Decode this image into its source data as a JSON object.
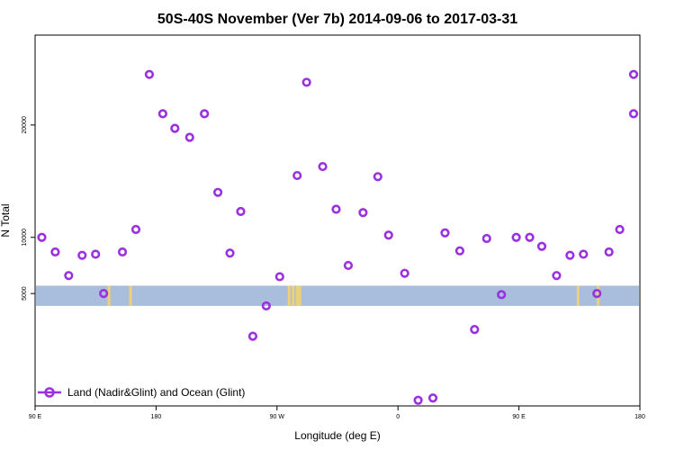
{
  "chart_data": {
    "type": "scatter",
    "title": "50S-40S November (Ver 7b)   2014-09-06 to 2017-03-31",
    "xlabel": "Longitude (deg E)",
    "ylabel": "N Total",
    "xlim": [
      90,
      540
    ],
    "ylim": [
      -5000,
      28000
    ],
    "x_ticks": [
      {
        "value": 90,
        "label": "90 E"
      },
      {
        "value": 180,
        "label": "180"
      },
      {
        "value": 270,
        "label": "90 W"
      },
      {
        "value": 360,
        "label": "0"
      },
      {
        "value": 450,
        "label": "90 E"
      },
      {
        "value": 540,
        "label": "180"
      }
    ],
    "y_ticks": [
      {
        "value": 5000,
        "label": "5000"
      },
      {
        "value": 10000,
        "label": "10000"
      },
      {
        "value": 20000,
        "label": "20000"
      }
    ],
    "grid": false,
    "legend_position": "bottom-left",
    "band": {
      "y_range": [
        3900,
        5700
      ],
      "color": "#a9bedd"
    },
    "land_color": "#f5d36b",
    "series": [
      {
        "name": "Land (Nadir&Glint) and Ocean (Glint)",
        "color": "#9b30e0",
        "x": [
          95,
          105,
          115,
          125,
          135,
          141,
          155,
          165,
          175,
          185,
          194,
          205,
          216,
          226,
          235,
          243,
          252,
          262,
          272,
          285,
          292,
          304,
          314,
          323,
          334,
          345,
          353,
          365,
          375,
          386,
          395,
          406,
          417,
          426,
          437,
          448,
          458,
          467,
          478,
          488,
          498,
          508,
          517,
          525,
          536,
          545
        ],
        "y": [
          10000,
          8700,
          6600,
          8400,
          8500,
          5000,
          8700,
          10700,
          24500,
          21000,
          19700,
          18900,
          21000,
          14000,
          8600,
          12300,
          1200,
          3900,
          6500,
          15500,
          23800,
          16300,
          12500,
          7500,
          12200,
          15400,
          10200,
          6800,
          -4500,
          -4300,
          10400,
          8800,
          1800,
          9900,
          4900,
          10000,
          10000,
          9200,
          6600,
          8400,
          8500,
          5000,
          8700,
          10700,
          24500,
          21000
        ]
      }
    ],
    "land_x": [
      145,
      161,
      279,
      282,
      285,
      287,
      494,
      509
    ]
  }
}
